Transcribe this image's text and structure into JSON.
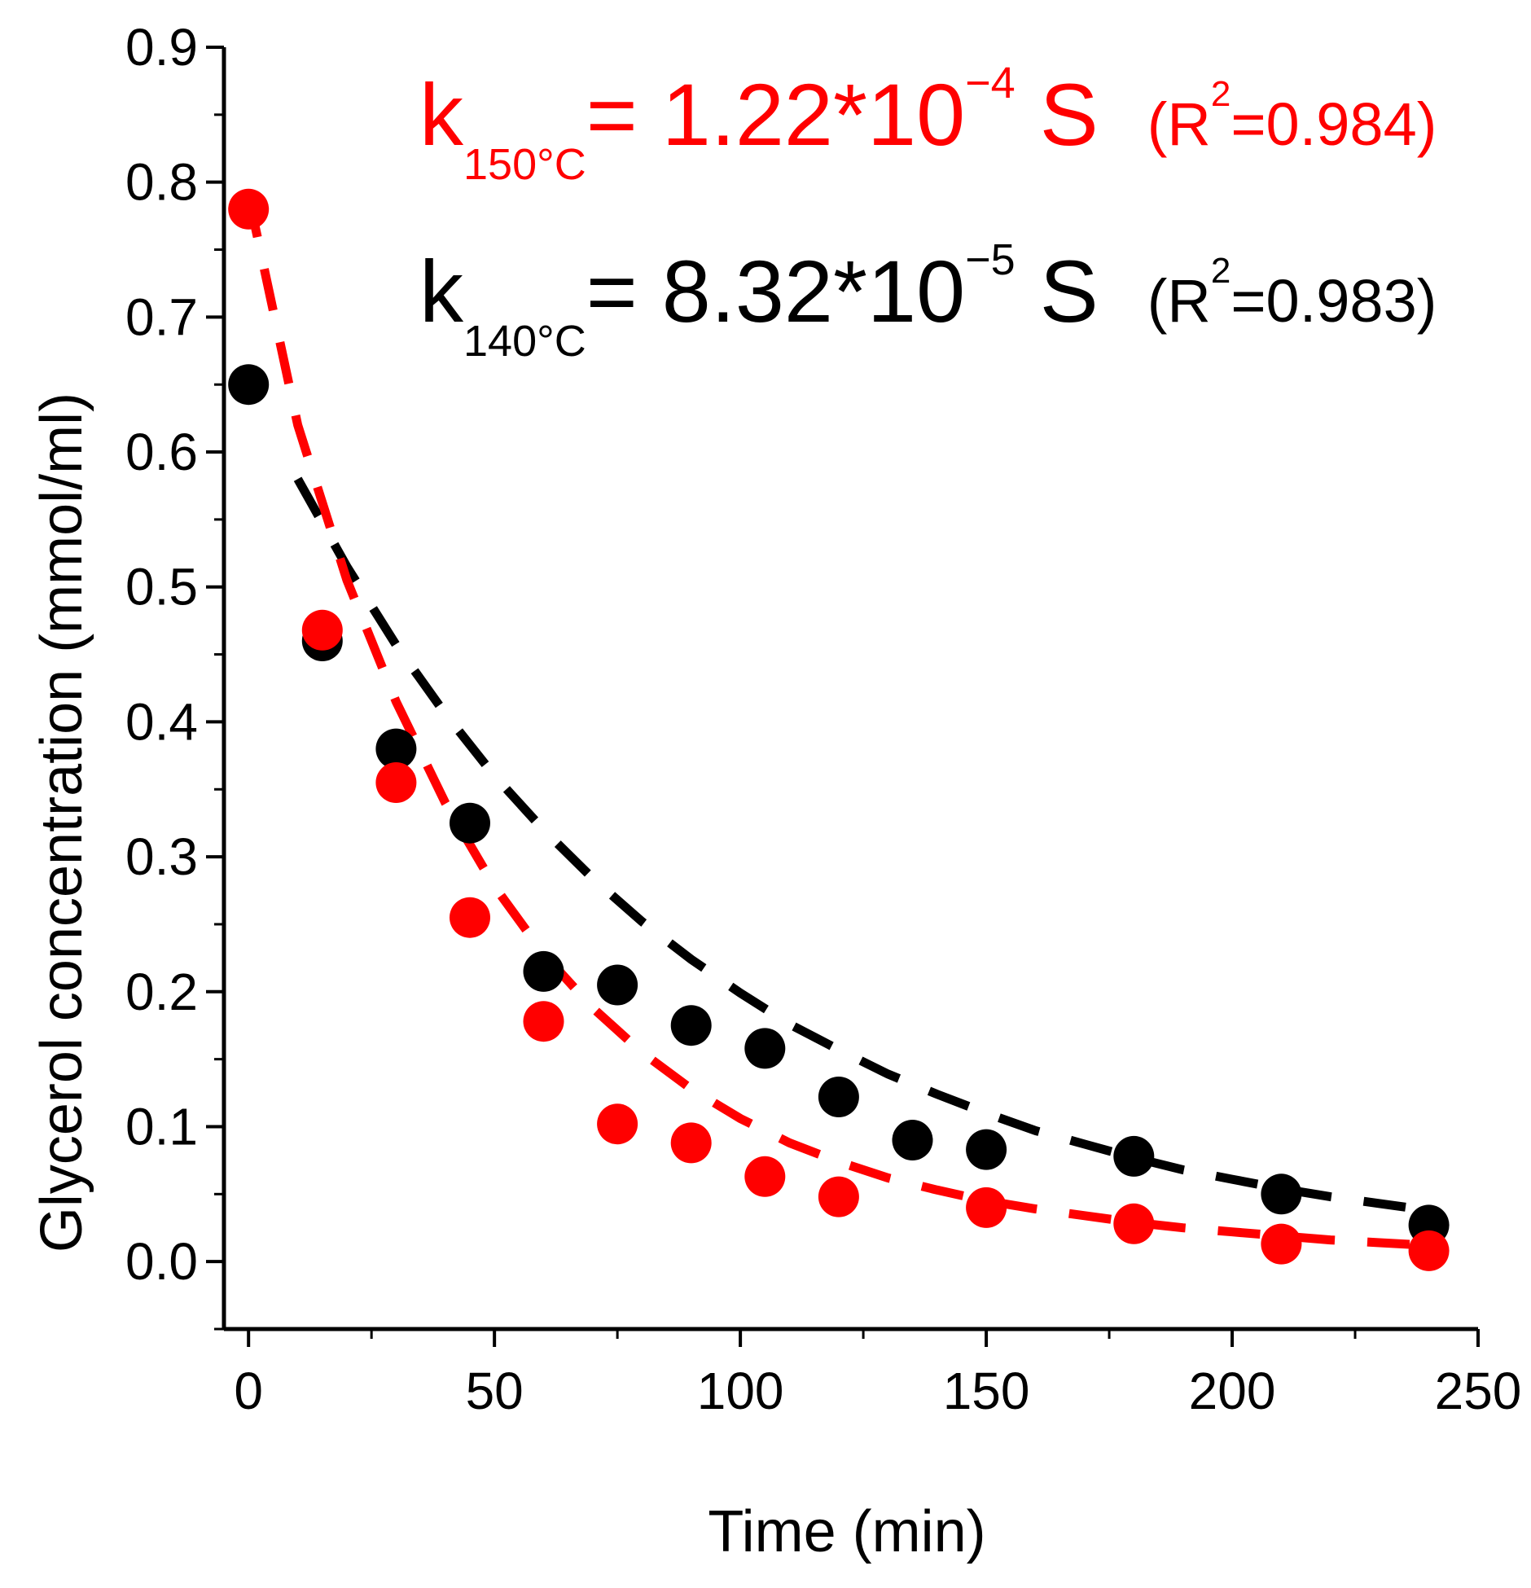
{
  "chart_data": {
    "type": "scatter",
    "title": "",
    "xlabel": "Time (min)",
    "ylabel": "Glycerol concentration (mmol/ml)",
    "xlim": [
      -5,
      250
    ],
    "ylim": [
      -0.05,
      0.9
    ],
    "xticks": [
      "0",
      "50",
      "100",
      "150",
      "200",
      "250"
    ],
    "yticks": [
      "0.0",
      "0.1",
      "0.2",
      "0.3",
      "0.4",
      "0.5",
      "0.6",
      "0.7",
      "0.8",
      "0.9"
    ],
    "grid": false,
    "series": [
      {
        "name": "140°C",
        "color": "#000000",
        "x": [
          0,
          15,
          30,
          45,
          60,
          75,
          90,
          105,
          120,
          135,
          150,
          180,
          210,
          240
        ],
        "y": [
          0.65,
          0.46,
          0.38,
          0.325,
          0.215,
          0.205,
          0.175,
          0.158,
          0.122,
          0.09,
          0.083,
          0.078,
          0.05,
          0.027
        ],
        "fit": {
          "style": "dashed",
          "x": [
            10,
            20,
            30,
            40,
            50,
            60,
            70,
            80,
            90,
            100,
            110,
            120,
            130,
            140,
            150,
            160,
            170,
            180,
            190,
            200,
            210,
            220,
            230,
            240
          ],
          "y": [
            0.58,
            0.515,
            0.457,
            0.406,
            0.36,
            0.32,
            0.284,
            0.252,
            0.224,
            0.199,
            0.176,
            0.157,
            0.139,
            0.124,
            0.11,
            0.097,
            0.087,
            0.077,
            0.068,
            0.061,
            0.054,
            0.048,
            0.043,
            0.038
          ]
        }
      },
      {
        "name": "150°C",
        "color": "#ff0000",
        "x": [
          0,
          15,
          30,
          45,
          60,
          75,
          90,
          105,
          120,
          150,
          180,
          210,
          240
        ],
        "y": [
          0.78,
          0.468,
          0.355,
          0.255,
          0.178,
          0.102,
          0.088,
          0.063,
          0.048,
          0.04,
          0.028,
          0.013,
          0.008
        ],
        "fit": {
          "style": "dashed",
          "x": [
            0,
            10,
            20,
            30,
            40,
            50,
            60,
            70,
            80,
            90,
            100,
            110,
            120,
            130,
            140,
            150,
            160,
            170,
            180,
            190,
            200,
            210,
            220,
            230,
            240
          ],
          "y": [
            0.79,
            0.62,
            0.505,
            0.415,
            0.34,
            0.278,
            0.228,
            0.188,
            0.155,
            0.128,
            0.106,
            0.088,
            0.074,
            0.062,
            0.053,
            0.045,
            0.039,
            0.034,
            0.029,
            0.025,
            0.022,
            0.019,
            0.016,
            0.014,
            0.012
          ]
        }
      }
    ],
    "annotations": [
      {
        "color": "#ff0000",
        "prefix": "k",
        "subscript": "150°C",
        "equation": "= 1.22*10",
        "exponent": "−4",
        "unit": "S",
        "r2_open": "(R",
        "r2_sup": "2",
        "r2_close": "=0.984)"
      },
      {
        "color": "#000000",
        "prefix": "k",
        "subscript": "140°C",
        "equation": "= 8.32*10",
        "exponent": "−5",
        "unit": "S",
        "r2_open": "(R",
        "r2_sup": "2",
        "r2_close": "=0.983)"
      }
    ]
  }
}
